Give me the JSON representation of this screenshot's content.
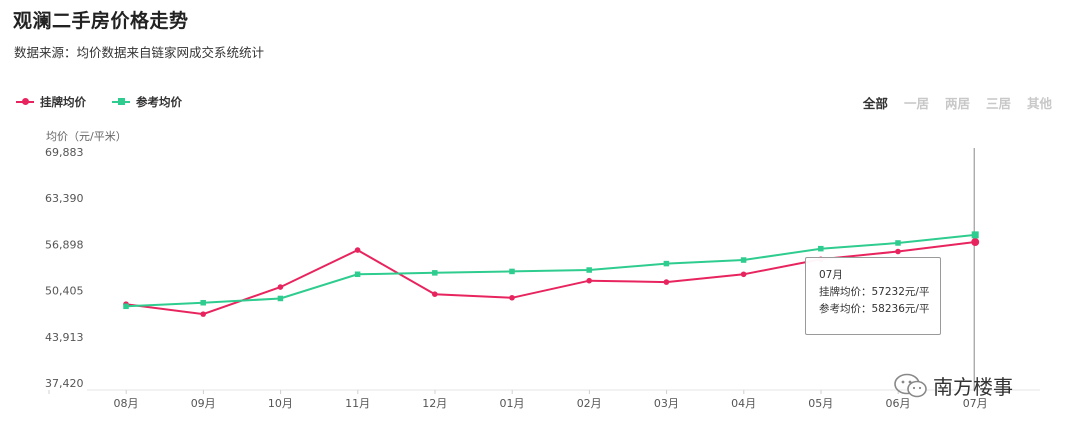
{
  "page": {
    "title": "观澜二手房价格走势",
    "subtitle": "数据来源：均价数据来自链家网成交系统统计"
  },
  "legend": [
    {
      "label": "挂牌均价",
      "color": "#e8245e",
      "marker": "circle"
    },
    {
      "label": "参考均价",
      "color": "#2ecc8e",
      "marker": "square"
    }
  ],
  "filters": {
    "tabs": [
      "全部",
      "一居",
      "两居",
      "三居",
      "其他"
    ],
    "active": "全部"
  },
  "chart_data": {
    "type": "line",
    "ylabel": "均价（元/平米）",
    "categories": [
      "08月",
      "09月",
      "10月",
      "11月",
      "12月",
      "01月",
      "02月",
      "03月",
      "04月",
      "05月",
      "06月",
      "07月"
    ],
    "yticks": [
      "69,883",
      "63,390",
      "56,898",
      "50,405",
      "43,913",
      "37,420"
    ],
    "ylim": [
      37420,
      69883
    ],
    "grid": false,
    "legend_position": "top-left",
    "series": [
      {
        "name": "挂牌均价",
        "color": "#e8245e",
        "marker": "circle",
        "values": [
          48500,
          47100,
          50900,
          56100,
          49900,
          49400,
          51800,
          51600,
          52700,
          54800,
          55900,
          57232
        ]
      },
      {
        "name": "参考均价",
        "color": "#2ecc8e",
        "marker": "square",
        "values": [
          48200,
          48700,
          49300,
          52700,
          52900,
          53100,
          53300,
          54200,
          54700,
          56300,
          57100,
          58236
        ]
      }
    ]
  },
  "tooltip": {
    "month": "07月",
    "line1": "挂牌均价：57232元/平",
    "line2": "参考均价：58236元/平"
  },
  "watermark": {
    "text": "南方楼事"
  }
}
